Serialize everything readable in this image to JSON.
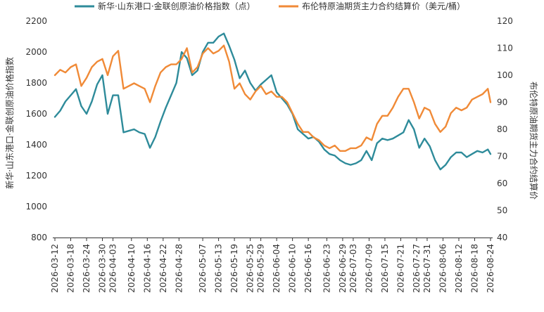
{
  "chart_data": {
    "type": "line",
    "title": "",
    "x": [
      "2026-03-12",
      "2026-03-14",
      "2026-03-16",
      "2026-03-18",
      "2026-03-20",
      "2026-03-22",
      "2026-03-24",
      "2026-03-26",
      "2026-03-28",
      "2026-03-30",
      "2026-04-01",
      "2026-04-03",
      "2026-04-05",
      "2026-04-07",
      "2026-04-09",
      "2026-04-11",
      "2026-04-13",
      "2026-04-15",
      "2026-04-17",
      "2026-04-19",
      "2026-04-21",
      "2026-04-23",
      "2026-04-25",
      "2026-04-27",
      "2026-04-29",
      "2026-05-01",
      "2026-05-03",
      "2026-05-05",
      "2026-05-07",
      "2026-05-09",
      "2026-05-11",
      "2026-05-13",
      "2026-05-15",
      "2026-05-17",
      "2026-05-19",
      "2026-05-21",
      "2026-05-23",
      "2026-05-25",
      "2026-05-27",
      "2026-05-29",
      "2026-05-31",
      "2026-06-02",
      "2026-06-04",
      "2026-06-06",
      "2026-06-08",
      "2026-06-10",
      "2026-06-12",
      "2026-06-14",
      "2026-06-16",
      "2026-06-18",
      "2026-06-20",
      "2026-06-22",
      "2026-06-24",
      "2026-06-26",
      "2026-06-28",
      "2026-06-30",
      "2026-07-02",
      "2026-07-04",
      "2026-07-06",
      "2026-07-08",
      "2026-07-10",
      "2026-07-12",
      "2026-07-14",
      "2026-07-16",
      "2026-07-18",
      "2026-07-20",
      "2026-07-22",
      "2026-07-24",
      "2026-07-26",
      "2026-07-28",
      "2026-07-30",
      "2026-08-01",
      "2026-08-03",
      "2026-08-05",
      "2026-08-07",
      "2026-08-09",
      "2026-08-11",
      "2026-08-13",
      "2026-08-15",
      "2026-08-17",
      "2026-08-19",
      "2026-08-21",
      "2026-08-23",
      "2026-08-24"
    ],
    "x_tick_labels": [
      "2026-03-12",
      "2026-03-18",
      "2026-03-24",
      "2026-03-30",
      "2026-04-03",
      "2026-04-10",
      "2026-04-16",
      "2026-04-22",
      "2026-04-28",
      "2026-05-07",
      "2026-05-13",
      "2026-05-19",
      "2026-05-25",
      "2026-05-29",
      "2026-06-04",
      "2026-06-10",
      "2026-06-16",
      "2026-06-23",
      "2026-06-29",
      "2026-07-03",
      "2026-07-09",
      "2026-07-15",
      "2026-07-21",
      "2026-07-27",
      "2026-07-31",
      "2026-08-06",
      "2026-08-12",
      "2026-08-18",
      "2026-08-24"
    ],
    "ylabel_left": "新华·山东港口·金联创原油价格指数",
    "ylabel_right": "布伦特原油期货主力合约结算价",
    "ylim_left": [
      800,
      2200
    ],
    "yticks_left": [
      800,
      1000,
      1200,
      1400,
      1600,
      1800,
      2000,
      2200
    ],
    "ylim_right": [
      40,
      120
    ],
    "yticks_right": [
      40,
      50,
      60,
      70,
      80,
      90,
      100,
      110,
      120
    ],
    "grid": false,
    "legend_position": "top",
    "series": [
      {
        "name": "新华·山东港口·金联创原油价格指数（点）",
        "axis": "left",
        "color": "#2e8b9a",
        "values": [
          1580,
          1620,
          1680,
          1720,
          1760,
          1650,
          1600,
          1680,
          1790,
          1850,
          1600,
          1720,
          1720,
          1480,
          1490,
          1500,
          1480,
          1470,
          1380,
          1450,
          1550,
          1640,
          1720,
          1800,
          2000,
          1960,
          1850,
          1880,
          2000,
          2060,
          2060,
          2100,
          2120,
          2040,
          1950,
          1830,
          1880,
          1800,
          1750,
          1790,
          1820,
          1850,
          1740,
          1700,
          1660,
          1600,
          1500,
          1470,
          1440,
          1450,
          1420,
          1370,
          1340,
          1330,
          1300,
          1280,
          1270,
          1280,
          1300,
          1360,
          1300,
          1410,
          1440,
          1430,
          1440,
          1460,
          1480,
          1560,
          1500,
          1380,
          1440,
          1390,
          1300,
          1240,
          1270,
          1320,
          1350,
          1350,
          1320,
          1340,
          1360,
          1350,
          1370,
          1340
        ]
      },
      {
        "name": "布伦特原油期货主力合约结算价（美元/桶）",
        "axis": "right",
        "color": "#f08a37",
        "values": [
          100,
          102,
          101,
          103,
          104,
          96,
          99,
          103,
          105,
          106,
          100,
          107,
          109,
          95,
          96,
          97,
          96,
          95,
          90,
          96,
          101,
          103,
          104,
          104,
          106,
          110,
          101,
          103,
          108,
          110,
          108,
          109,
          111,
          105,
          95,
          97,
          93,
          91,
          94,
          96,
          93,
          94,
          92,
          92,
          90,
          86,
          82,
          79,
          79,
          77,
          76,
          74,
          73,
          74,
          72,
          72,
          73,
          73,
          74,
          77,
          76,
          82,
          85,
          85,
          88,
          92,
          95,
          95,
          90,
          84,
          88,
          87,
          82,
          79,
          81,
          86,
          88,
          87,
          88,
          91,
          92,
          93,
          95,
          90
        ]
      }
    ]
  }
}
